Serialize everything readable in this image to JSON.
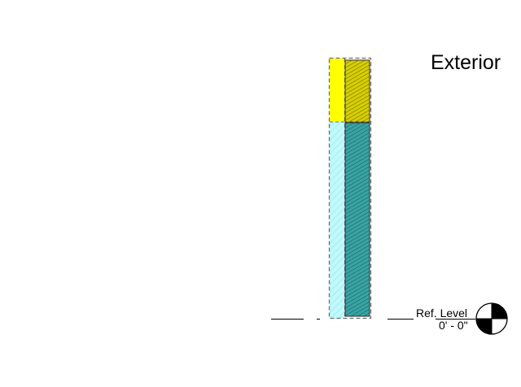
{
  "view": {
    "side_label": "Exterior"
  },
  "level": {
    "name": "Ref. Level",
    "elevation": "0' - 0\""
  },
  "colors": {
    "yellow_layer": "#ffff00",
    "cyan_layer": "#bff9fb",
    "olive_hatch": "#9b9600",
    "teal_hatch": "#2b8c8c",
    "dashed_outline": "#6f6f6f",
    "line": "#000000"
  },
  "icons": {
    "level_marker": "level-head-target-icon"
  }
}
